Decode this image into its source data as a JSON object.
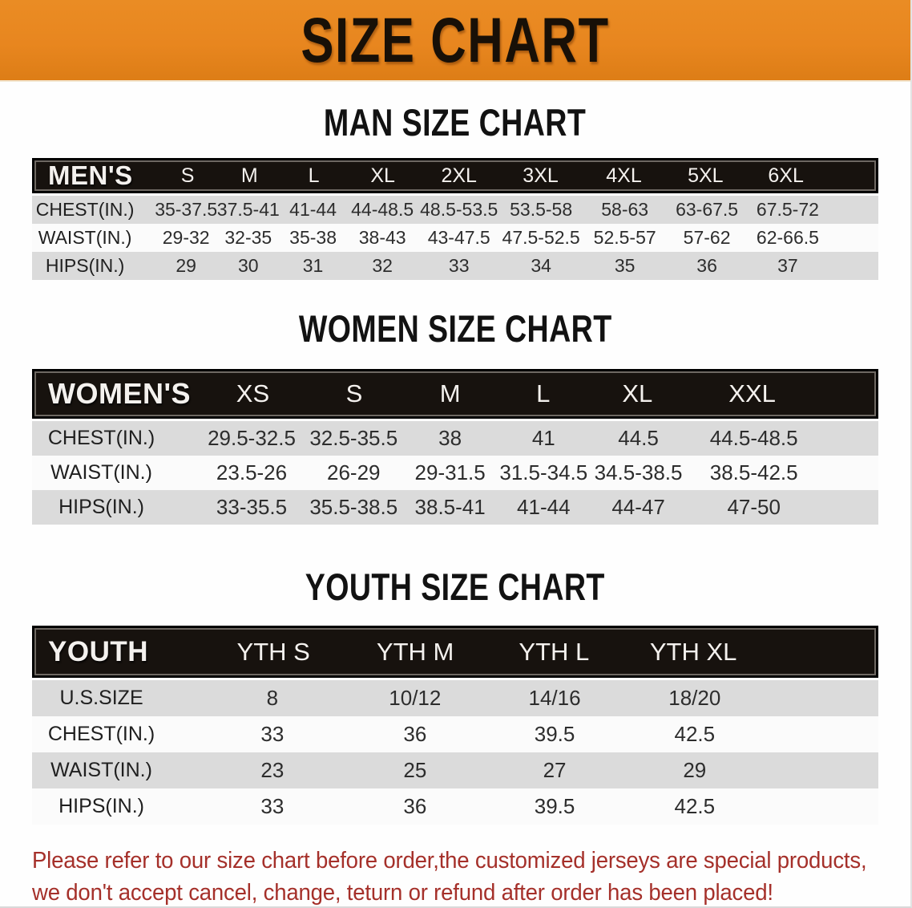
{
  "banner": {
    "title": "SIZE CHART",
    "bg_color": "#E8861F",
    "text_color": "#181007"
  },
  "sections": {
    "men": {
      "heading": "MAN SIZE CHART",
      "table": {
        "header": [
          "MEN'S",
          "S",
          "M",
          "L",
          "XL",
          "2XL",
          "3XL",
          "4XL",
          "5XL",
          "6XL"
        ],
        "rows": [
          [
            "CHEST(IN.)",
            "35-37.5",
            "37.5-41",
            "41-44",
            "44-48.5",
            "48.5-53.5",
            "53.5-58",
            "58-63",
            "63-67.5",
            "67.5-72"
          ],
          [
            "WAIST(IN.)",
            "29-32",
            "32-35",
            "35-38",
            "38-43",
            "43-47.5",
            "47.5-52.5",
            "52.5-57",
            "57-62",
            "62-66.5"
          ],
          [
            "HIPS(IN.)",
            "29",
            "30",
            "31",
            "32",
            "33",
            "34",
            "35",
            "36",
            "37"
          ]
        ]
      }
    },
    "women": {
      "heading": "WOMEN SIZE CHART",
      "table": {
        "header": [
          "WOMEN'S",
          "XS",
          "S",
          "M",
          "L",
          "XL",
          "XXL"
        ],
        "rows": [
          [
            "CHEST(IN.)",
            "29.5-32.5",
            "32.5-35.5",
            "38",
            "41",
            "44.5",
            "44.5-48.5"
          ],
          [
            "WAIST(IN.)",
            "23.5-26",
            "26-29",
            "29-31.5",
            "31.5-34.5",
            "34.5-38.5",
            "38.5-42.5"
          ],
          [
            "HIPS(IN.)",
            "33-35.5",
            "35.5-38.5",
            "38.5-41",
            "41-44",
            "44-47",
            "47-50"
          ]
        ]
      }
    },
    "youth": {
      "heading": "YOUTH SIZE CHART",
      "table": {
        "header": [
          "YOUTH",
          "YTH S",
          "YTH M",
          "YTH L",
          "YTH XL"
        ],
        "rows": [
          [
            "U.S.SIZE",
            "8",
            "10/12",
            "14/16",
            "18/20"
          ],
          [
            "CHEST(IN.)",
            "33",
            "36",
            "39.5",
            "42.5"
          ],
          [
            "WAIST(IN.)",
            "23",
            "25",
            "27",
            "29"
          ],
          [
            "HIPS(IN.)",
            "33",
            "36",
            "39.5",
            "42.5"
          ]
        ]
      }
    }
  },
  "disclaimer": {
    "line1": "Please refer to our size chart before order,the customized jerseys are special products,",
    "line2": "we don't accept cancel, change, teturn or refund after order has been placed!",
    "color": "#A5302A"
  },
  "colors": {
    "header_bar": "#17120E",
    "row_gray": "#DBDBDB",
    "row_white": "#FBFBFB",
    "heading_text": "#121212"
  }
}
